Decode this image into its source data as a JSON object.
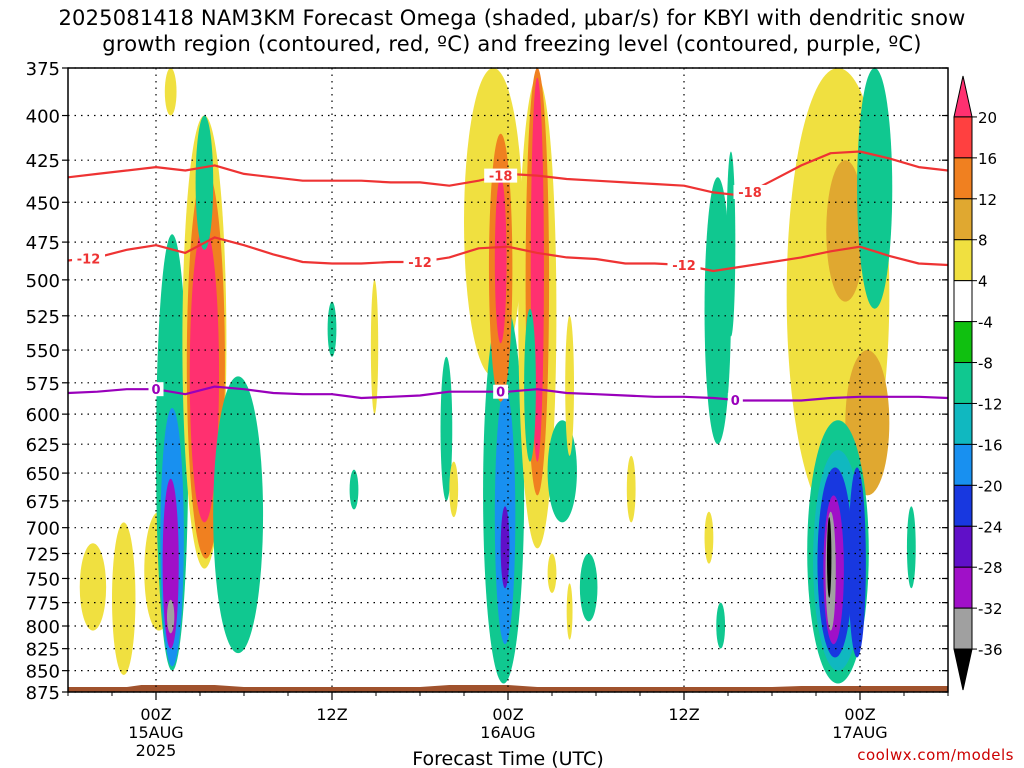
{
  "title_line1": "2025081418 NAM3KM Forecast Omega (shaded, μbar/s) for KBYI with dendritic snow",
  "title_line2": "growth region (contoured, red, ºC) and freezing level (contoured, purple, ºC)",
  "credit": "coolwx.com/models",
  "chart_data": {
    "type": "heatmap",
    "title": "2025081418 NAM3KM Forecast Omega (shaded, μbar/s) for KBYI with dendritic snow growth region (contoured, red, ºC) and freezing level (contoured, purple, ºC)",
    "xlabel": "Forecast Time (UTC)",
    "ylabel": "",
    "x_ticks": [
      {
        "hour": 6,
        "line1": "00Z",
        "line2": "15AUG",
        "line3": "2025"
      },
      {
        "hour": 18,
        "line1": "12Z",
        "line2": "",
        "line3": ""
      },
      {
        "hour": 30,
        "line1": "00Z",
        "line2": "16AUG",
        "line3": ""
      },
      {
        "hour": 42,
        "line1": "12Z",
        "line2": "",
        "line3": ""
      },
      {
        "hour": 54,
        "line1": "00Z",
        "line2": "17AUG",
        "line3": ""
      }
    ],
    "xlim": [
      0,
      60
    ],
    "ylim": [
      875,
      375
    ],
    "y_ticks": [
      375,
      400,
      425,
      450,
      475,
      500,
      525,
      550,
      575,
      600,
      625,
      650,
      675,
      700,
      725,
      750,
      775,
      800,
      825,
      850,
      875
    ],
    "colorbar": {
      "levels": [
        "20",
        "16",
        "12",
        "8",
        "4",
        "-4",
        "-8",
        "-12",
        "-16",
        "-20",
        "-24",
        "-28",
        "-32",
        "-36"
      ],
      "colors": [
        "#ff3070",
        "#ff4040",
        "#f08020",
        "#e0a830",
        "#f0e040",
        "#ffffff",
        "#10c010",
        "#10c890",
        "#10b8c0",
        "#1890f0",
        "#1838e0",
        "#6010c8",
        "#a010c8",
        "#a0a0a0",
        "#000000"
      ]
    },
    "contours": {
      "dgz_upper": {
        "label": "-18",
        "color": "#ee3333",
        "x": [
          0,
          2,
          4,
          6,
          8,
          10,
          12,
          14,
          16,
          18,
          20,
          22,
          24,
          26,
          28,
          30,
          32,
          34,
          36,
          38,
          40,
          42,
          44,
          46,
          48,
          50,
          52,
          54,
          56,
          58,
          60
        ],
        "y": [
          435,
          433,
          431,
          429,
          431,
          428,
          433,
          435,
          437,
          437,
          437,
          438,
          438,
          440,
          437,
          433,
          434,
          436,
          437,
          438,
          439,
          440,
          444,
          446,
          437,
          428,
          421,
          420,
          424,
          429,
          431
        ]
      },
      "dgz_lower": {
        "label": "-12",
        "color": "#ee3333",
        "x": [
          0,
          2,
          4,
          6,
          8,
          10,
          12,
          14,
          16,
          18,
          20,
          22,
          24,
          26,
          28,
          30,
          32,
          34,
          36,
          38,
          40,
          42,
          44,
          46,
          48,
          50,
          52,
          54,
          56,
          58,
          60
        ],
        "y": [
          487,
          485,
          480,
          477,
          482,
          472,
          477,
          483,
          488,
          489,
          489,
          488,
          488,
          485,
          479,
          478,
          482,
          485,
          486,
          489,
          489,
          490,
          494,
          491,
          488,
          485,
          481,
          478,
          484,
          489,
          490
        ]
      },
      "freezing_level": {
        "label": "0",
        "color": "#9900bb",
        "x": [
          0,
          2,
          4,
          6,
          8,
          10,
          12,
          14,
          16,
          18,
          20,
          22,
          24,
          26,
          28,
          30,
          32,
          34,
          36,
          38,
          40,
          42,
          44,
          46,
          48,
          50,
          52,
          54,
          56,
          58,
          60
        ],
        "y": [
          583,
          582,
          580,
          580,
          584,
          578,
          580,
          583,
          584,
          584,
          587,
          586,
          585,
          582,
          582,
          582,
          580,
          583,
          584,
          585,
          586,
          586,
          587,
          589,
          589,
          589,
          587,
          586,
          586,
          586,
          587
        ]
      }
    },
    "omega_cells": [
      {
        "hour": 1.7,
        "p": 760,
        "rx": 0.9,
        "ry": 45,
        "value": 5
      },
      {
        "hour": 3.8,
        "p": 775,
        "rx": 0.8,
        "ry": 80,
        "value": 5
      },
      {
        "hour": 6.2,
        "p": 745,
        "rx": 1.0,
        "ry": 60,
        "value": 6
      },
      {
        "hour": 7.1,
        "p": 660,
        "rx": 1.1,
        "ry": 190,
        "value": -8
      },
      {
        "hour": 7.1,
        "p": 720,
        "rx": 0.8,
        "ry": 125,
        "value": -16
      },
      {
        "hour": 7.0,
        "p": 740,
        "rx": 0.55,
        "ry": 85,
        "value": -28
      },
      {
        "hour": 7.0,
        "p": 790,
        "rx": 0.25,
        "ry": 18,
        "value": -32
      },
      {
        "hour": 9.3,
        "p": 570,
        "rx": 1.5,
        "ry": 170,
        "value": 6
      },
      {
        "hour": 9.4,
        "p": 580,
        "rx": 1.3,
        "ry": 150,
        "value": 12
      },
      {
        "hour": 9.3,
        "p": 580,
        "rx": 1.0,
        "ry": 115,
        "value": 20
      },
      {
        "hour": 9.3,
        "p": 440,
        "rx": 0.6,
        "ry": 40,
        "value": -8
      },
      {
        "hour": 11.6,
        "p": 700,
        "rx": 1.7,
        "ry": 130,
        "value": -8
      },
      {
        "hour": 7.0,
        "p": 385,
        "rx": 0.4,
        "ry": 15,
        "value": 5
      },
      {
        "hour": 18.0,
        "p": 535,
        "rx": 0.3,
        "ry": 20,
        "value": -8
      },
      {
        "hour": 20.9,
        "p": 550,
        "rx": 0.25,
        "ry": 50,
        "value": 5
      },
      {
        "hour": 19.5,
        "p": 665,
        "rx": 0.3,
        "ry": 18,
        "value": -8
      },
      {
        "hour": 25.8,
        "p": 615,
        "rx": 0.4,
        "ry": 60,
        "value": -8
      },
      {
        "hour": 26.3,
        "p": 665,
        "rx": 0.3,
        "ry": 25,
        "value": 5
      },
      {
        "hour": 29.0,
        "p": 460,
        "rx": 2.0,
        "ry": 110,
        "value": 5
      },
      {
        "hour": 29.7,
        "p": 690,
        "rx": 1.4,
        "ry": 175,
        "value": -8
      },
      {
        "hour": 29.8,
        "p": 700,
        "rx": 0.7,
        "ry": 120,
        "value": -16
      },
      {
        "hour": 29.8,
        "p": 720,
        "rx": 0.3,
        "ry": 40,
        "value": -24
      },
      {
        "hour": 29.5,
        "p": 500,
        "rx": 0.8,
        "ry": 90,
        "value": 12
      },
      {
        "hour": 29.5,
        "p": 490,
        "rx": 0.4,
        "ry": 55,
        "value": 20
      },
      {
        "hour": 32.0,
        "p": 550,
        "rx": 1.3,
        "ry": 170,
        "value": 5
      },
      {
        "hour": 32.0,
        "p": 520,
        "rx": 0.8,
        "ry": 150,
        "value": 12
      },
      {
        "hour": 32.0,
        "p": 510,
        "rx": 0.45,
        "ry": 130,
        "value": 20
      },
      {
        "hour": 31.5,
        "p": 580,
        "rx": 0.4,
        "ry": 60,
        "value": -8
      },
      {
        "hour": 33.7,
        "p": 650,
        "rx": 1.0,
        "ry": 45,
        "value": -8
      },
      {
        "hour": 34.2,
        "p": 580,
        "rx": 0.3,
        "ry": 55,
        "value": 5
      },
      {
        "hour": 34.2,
        "p": 785,
        "rx": 0.2,
        "ry": 30,
        "value": 5
      },
      {
        "hour": 35.5,
        "p": 760,
        "rx": 0.6,
        "ry": 35,
        "value": -8
      },
      {
        "hour": 33.0,
        "p": 745,
        "rx": 0.3,
        "ry": 20,
        "value": 5
      },
      {
        "hour": 38.4,
        "p": 665,
        "rx": 0.3,
        "ry": 30,
        "value": 5
      },
      {
        "hour": 44.3,
        "p": 530,
        "rx": 0.9,
        "ry": 95,
        "value": -8
      },
      {
        "hour": 45.2,
        "p": 480,
        "rx": 0.3,
        "ry": 60,
        "value": -8
      },
      {
        "hour": 43.7,
        "p": 710,
        "rx": 0.3,
        "ry": 25,
        "value": 5
      },
      {
        "hour": 44.5,
        "p": 800,
        "rx": 0.3,
        "ry": 25,
        "value": -8
      },
      {
        "hour": 52.5,
        "p": 520,
        "rx": 3.5,
        "ry": 175,
        "value": 5
      },
      {
        "hour": 53.0,
        "p": 470,
        "rx": 1.3,
        "ry": 45,
        "value": 10
      },
      {
        "hour": 54.5,
        "p": 610,
        "rx": 1.5,
        "ry": 60,
        "value": 10
      },
      {
        "hour": 55.0,
        "p": 445,
        "rx": 1.2,
        "ry": 75,
        "value": -8
      },
      {
        "hour": 57.5,
        "p": 720,
        "rx": 0.3,
        "ry": 40,
        "value": -8
      },
      {
        "hour": 52.5,
        "p": 735,
        "rx": 2.1,
        "ry": 130,
        "value": -8
      },
      {
        "hour": 52.5,
        "p": 740,
        "rx": 1.7,
        "ry": 110,
        "value": -12
      },
      {
        "hour": 52.3,
        "p": 740,
        "rx": 1.2,
        "ry": 95,
        "value": -20
      },
      {
        "hour": 52.2,
        "p": 745,
        "rx": 0.7,
        "ry": 75,
        "value": -28
      },
      {
        "hour": 52.0,
        "p": 745,
        "rx": 0.35,
        "ry": 60,
        "value": -32
      },
      {
        "hour": 51.9,
        "p": 730,
        "rx": 0.15,
        "ry": 40,
        "value": -36
      },
      {
        "hour": 53.8,
        "p": 740,
        "rx": 0.6,
        "ry": 95,
        "value": -20
      }
    ]
  }
}
